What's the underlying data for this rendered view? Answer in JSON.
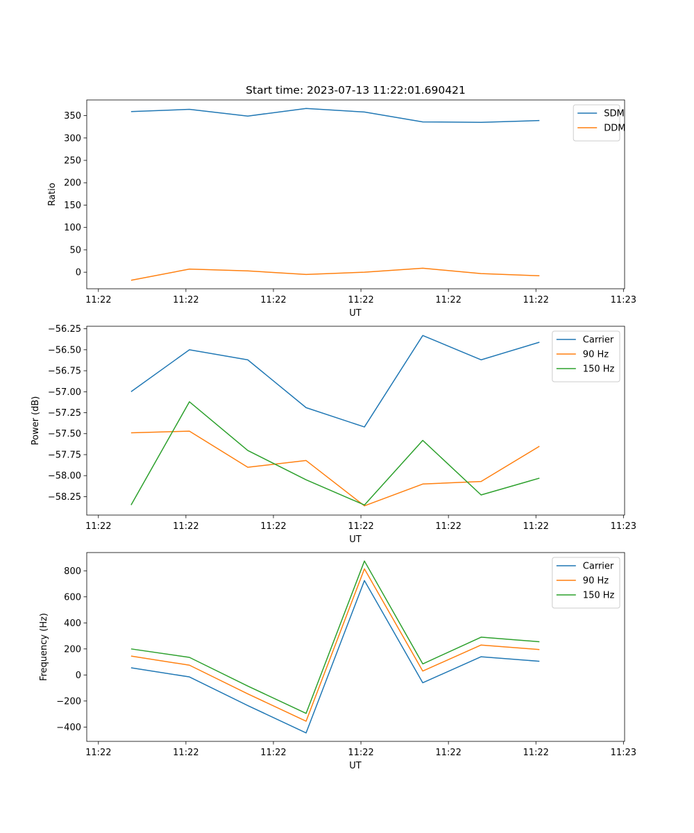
{
  "figure_title": "Start time: 2023-07-13 11:22:01.690421",
  "chart_data": [
    {
      "type": "line",
      "title": "Start time: 2023-07-13 11:22:01.690421",
      "xlabel": "UT",
      "ylabel": "Ratio",
      "xlim": [
        -0.76,
        8.46
      ],
      "ylim": [
        -37,
        385
      ],
      "x_ticks": [
        -0.56,
        0.94,
        2.44,
        3.94,
        5.44,
        6.94,
        8.44
      ],
      "x_tick_labels": [
        "11:22",
        "11:22",
        "11:22",
        "11:22",
        "11:22",
        "11:22",
        "11:23"
      ],
      "y_ticks": [
        0,
        50,
        100,
        150,
        200,
        250,
        300,
        350
      ],
      "y_tick_labels": [
        "0",
        "50",
        "100",
        "150",
        "200",
        "250",
        "300",
        "350"
      ],
      "x": [
        0,
        1,
        2,
        3,
        4,
        5,
        6,
        7
      ],
      "legend_position": "upper-right",
      "series": [
        {
          "name": "SDM",
          "color": "#1f77b4",
          "values": [
            359,
            364,
            349,
            366,
            358,
            336,
            335,
            339
          ]
        },
        {
          "name": "DDM",
          "color": "#ff7f0e",
          "values": [
            -18,
            7,
            3,
            -5,
            0,
            9,
            -3,
            -8
          ]
        }
      ]
    },
    {
      "type": "line",
      "title": "",
      "xlabel": "UT",
      "ylabel": "Power (dB)",
      "xlim": [
        -0.76,
        8.46
      ],
      "ylim": [
        -58.47,
        -56.22
      ],
      "x_ticks": [
        -0.56,
        0.94,
        2.44,
        3.94,
        5.44,
        6.94,
        8.44
      ],
      "x_tick_labels": [
        "11:22",
        "11:22",
        "11:22",
        "11:22",
        "11:22",
        "11:22",
        "11:23"
      ],
      "y_ticks": [
        -58.25,
        -58.0,
        -57.75,
        -57.5,
        -57.25,
        -57.0,
        -56.75,
        -56.5,
        -56.25
      ],
      "y_tick_labels": [
        "−58.25",
        "−58.00",
        "−57.75",
        "−57.50",
        "−57.25",
        "−57.00",
        "−56.75",
        "−56.50",
        "−56.25"
      ],
      "x": [
        0,
        1,
        2,
        3,
        4,
        5,
        6,
        7
      ],
      "legend_position": "upper-right",
      "series": [
        {
          "name": "Carrier",
          "color": "#1f77b4",
          "values": [
            -57.0,
            -56.5,
            -56.62,
            -57.19,
            -57.42,
            -56.33,
            -56.62,
            -56.41
          ]
        },
        {
          "name": "90 Hz",
          "color": "#ff7f0e",
          "values": [
            -57.49,
            -57.47,
            -57.9,
            -57.82,
            -58.36,
            -58.1,
            -58.07,
            -57.65
          ]
        },
        {
          "name": "150 Hz",
          "color": "#2ca02c",
          "values": [
            -58.35,
            -57.12,
            -57.7,
            -58.05,
            -58.35,
            -57.58,
            -58.23,
            -58.03
          ]
        }
      ]
    },
    {
      "type": "line",
      "title": "",
      "xlabel": "UT",
      "ylabel": "Frequency (Hz)",
      "xlim": [
        -0.76,
        8.46
      ],
      "ylim": [
        -510,
        940
      ],
      "x_ticks": [
        -0.56,
        0.94,
        2.44,
        3.94,
        5.44,
        6.94,
        8.44
      ],
      "x_tick_labels": [
        "11:22",
        "11:22",
        "11:22",
        "11:22",
        "11:22",
        "11:22",
        "11:23"
      ],
      "y_ticks": [
        -400,
        -200,
        0,
        200,
        400,
        600,
        800
      ],
      "y_tick_labels": [
        "−400",
        "−200",
        "0",
        "200",
        "400",
        "600",
        "800"
      ],
      "x": [
        0,
        1,
        2,
        3,
        4,
        5,
        6,
        7
      ],
      "legend_position": "upper-right",
      "series": [
        {
          "name": "Carrier",
          "color": "#1f77b4",
          "values": [
            55,
            -15,
            -235,
            -445,
            725,
            -60,
            140,
            105
          ]
        },
        {
          "name": "90 Hz",
          "color": "#ff7f0e",
          "values": [
            145,
            75,
            -145,
            -355,
            815,
            30,
            230,
            195
          ]
        },
        {
          "name": "150 Hz",
          "color": "#2ca02c",
          "values": [
            200,
            135,
            -85,
            -295,
            875,
            85,
            290,
            255
          ]
        }
      ]
    }
  ]
}
